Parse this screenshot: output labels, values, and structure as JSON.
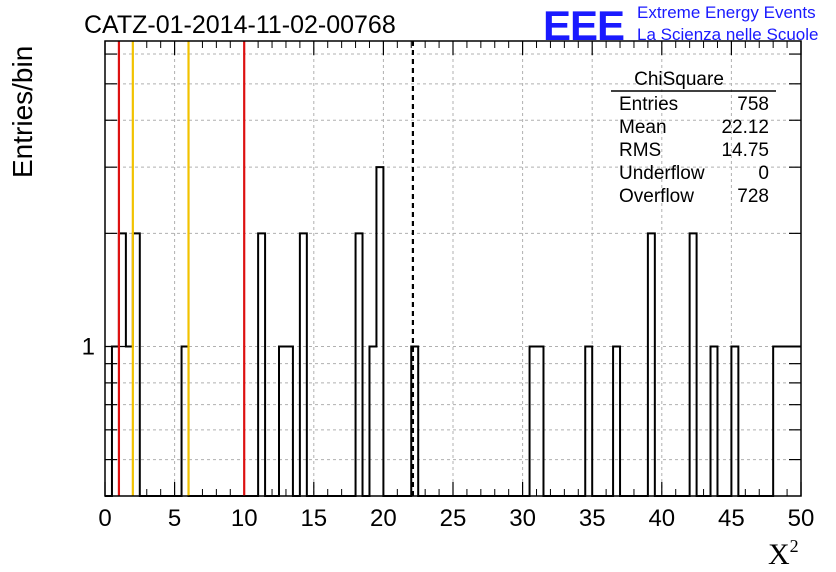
{
  "header": {
    "title": "CATZ-01-2014-11-02-00768",
    "logo_letters": "EEE",
    "logo_line1": "Extreme Energy Events",
    "logo_line2": "La Scienza nelle Scuole"
  },
  "stats_box": {
    "title": "ChiSquare",
    "rows": [
      {
        "label": "Entries",
        "value": "758"
      },
      {
        "label": "Mean",
        "value": "22.12"
      },
      {
        "label": "RMS",
        "value": "14.75"
      },
      {
        "label": "Underflow",
        "value": "0"
      },
      {
        "label": "Overflow",
        "value": "728"
      }
    ]
  },
  "colors": {
    "histogram": "#000000",
    "red_line": "#dd1111",
    "yellow_line": "#f2c200",
    "mean_line": "#000000",
    "grid": "#b0b0b0",
    "logo": "#1a1aff"
  },
  "chart_data": {
    "type": "bar",
    "title": "CATZ-01-2014-11-02-00768",
    "xlabel": "X²",
    "ylabel": "Entries/bin",
    "xlim": [
      0,
      50
    ],
    "ylim_log": [
      0.4,
      6.5
    ],
    "log_y": true,
    "grid": true,
    "bin_width": 0.5,
    "x_ticks": [
      0,
      5,
      10,
      15,
      20,
      25,
      30,
      35,
      40,
      45,
      50
    ],
    "y_ticks_labeled": [
      1
    ],
    "bins": [
      {
        "x0": 0.5,
        "count": 1
      },
      {
        "x0": 1.0,
        "count": 2
      },
      {
        "x0": 1.5,
        "count": 1
      },
      {
        "x0": 2.0,
        "count": 2
      },
      {
        "x0": 5.5,
        "count": 1
      },
      {
        "x0": 11.0,
        "count": 2
      },
      {
        "x0": 12.5,
        "count": 1
      },
      {
        "x0": 13.0,
        "count": 1
      },
      {
        "x0": 14.0,
        "count": 2
      },
      {
        "x0": 18.0,
        "count": 2
      },
      {
        "x0": 19.0,
        "count": 1
      },
      {
        "x0": 19.5,
        "count": 3
      },
      {
        "x0": 22.0,
        "count": 1
      },
      {
        "x0": 30.5,
        "count": 1
      },
      {
        "x0": 31.0,
        "count": 1
      },
      {
        "x0": 34.5,
        "count": 1
      },
      {
        "x0": 36.5,
        "count": 1
      },
      {
        "x0": 39.0,
        "count": 2
      },
      {
        "x0": 42.0,
        "count": 2
      },
      {
        "x0": 43.5,
        "count": 1
      },
      {
        "x0": 45.0,
        "count": 1
      },
      {
        "x0": 48.0,
        "count": 1
      },
      {
        "x0": 48.5,
        "count": 1
      },
      {
        "x0": 49.0,
        "count": 1
      },
      {
        "x0": 49.5,
        "count": 1
      }
    ],
    "vertical_lines": [
      {
        "x": 1.0,
        "color": "red"
      },
      {
        "x": 2.0,
        "color": "yellow"
      },
      {
        "x": 6.0,
        "color": "yellow"
      },
      {
        "x": 10.0,
        "color": "red"
      },
      {
        "x": 22.12,
        "color": "black-dashed"
      }
    ]
  }
}
